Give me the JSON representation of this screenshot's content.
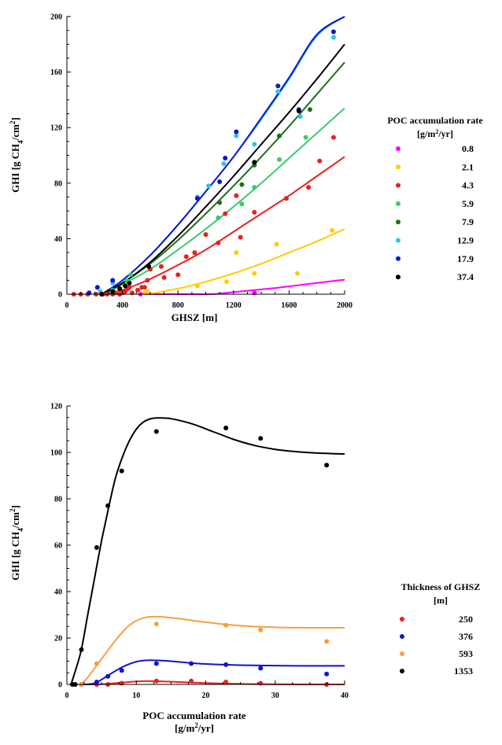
{
  "chart_data": [
    {
      "type": "scatter",
      "xlabel": "GHSZ [m]",
      "ylabel": "GHI [g CH",
      "ylabel_sub": "4",
      "ylabel_tail": "/cm",
      "ylabel_sup": "2",
      "ylabel_end": "]",
      "xlim": [
        0,
        2000
      ],
      "ylim": [
        0,
        200
      ],
      "xticks": [
        "0",
        "400",
        "800",
        "1200",
        "1600",
        "2000"
      ],
      "yticks": [
        "0",
        "40",
        "80",
        "120",
        "160",
        "200"
      ],
      "legend_title_1": "POC accumulation rate",
      "legend_title_2a": "[g/m",
      "legend_title_2sup": "2",
      "legend_title_2b": "/yr]",
      "legend_position": "right",
      "series": [
        {
          "name": "0.8",
          "color": "#ff00ff",
          "points": [
            [
              530,
              0
            ],
            [
              1350,
              1
            ]
          ],
          "curve": [
            [
              560,
              0
            ],
            [
              1000,
              0
            ],
            [
              1100,
              0.5
            ],
            [
              1300,
              2.5
            ],
            [
              1500,
              4.5
            ],
            [
              1750,
              7.5
            ],
            [
              2000,
              10.5
            ]
          ]
        },
        {
          "name": "2.1",
          "color": "#ffcc00",
          "points": [
            [
              560,
              1
            ],
            [
              580,
              2
            ],
            [
              940,
              6
            ],
            [
              1150,
              9
            ],
            [
              1220,
              30
            ],
            [
              1350,
              15
            ],
            [
              1510,
              36
            ],
            [
              1660,
              15
            ],
            [
              1910,
              46
            ]
          ],
          "curve": [
            [
              580,
              0
            ],
            [
              800,
              4
            ],
            [
              1000,
              9
            ],
            [
              1200,
              15
            ],
            [
              1400,
              22
            ],
            [
              1600,
              30
            ],
            [
              1800,
              38
            ],
            [
              2000,
              47
            ]
          ]
        },
        {
          "name": "4.3",
          "color": "#e8201c",
          "points": [
            [
              50,
              0
            ],
            [
              100,
              0
            ],
            [
              150,
              0
            ],
            [
              210,
              0
            ],
            [
              260,
              0
            ],
            [
              290,
              0
            ],
            [
              330,
              0
            ],
            [
              350,
              1
            ],
            [
              380,
              0
            ],
            [
              400,
              1
            ],
            [
              420,
              2
            ],
            [
              440,
              4
            ],
            [
              450,
              5
            ],
            [
              470,
              1
            ],
            [
              510,
              3
            ],
            [
              540,
              5
            ],
            [
              560,
              5
            ],
            [
              580,
              10
            ],
            [
              600,
              18
            ],
            [
              680,
              20
            ],
            [
              700,
              12
            ],
            [
              800,
              14
            ],
            [
              860,
              27
            ],
            [
              920,
              30
            ],
            [
              1000,
              43
            ],
            [
              1090,
              37
            ],
            [
              1140,
              58
            ],
            [
              1220,
              71
            ],
            [
              1250,
              41
            ],
            [
              1350,
              59
            ],
            [
              1580,
              69
            ],
            [
              1740,
              77
            ],
            [
              1820,
              96
            ],
            [
              1920,
              113
            ]
          ],
          "curve": [
            [
              270,
              0
            ],
            [
              400,
              3
            ],
            [
              600,
              11
            ],
            [
              800,
              21
            ],
            [
              1000,
              32
            ],
            [
              1200,
              45
            ],
            [
              1400,
              58
            ],
            [
              1600,
              71
            ],
            [
              1800,
              85
            ],
            [
              2000,
              99
            ]
          ]
        },
        {
          "name": "5.9",
          "color": "#3cc86e",
          "points": [
            [
              330,
              3
            ],
            [
              430,
              10
            ],
            [
              460,
              14
            ],
            [
              1090,
              55
            ],
            [
              1260,
              65
            ],
            [
              1350,
              77
            ],
            [
              1530,
              97
            ],
            [
              1720,
              113
            ]
          ],
          "curve": [
            [
              260,
              0
            ],
            [
              400,
              7
            ],
            [
              600,
              18
            ],
            [
              800,
              32
            ],
            [
              1000,
              47
            ],
            [
              1200,
              63
            ],
            [
              1400,
              80
            ],
            [
              1600,
              98
            ],
            [
              1800,
              116
            ],
            [
              2000,
              134
            ]
          ]
        },
        {
          "name": "7.9",
          "color": "#1e6e1e",
          "points": [
            [
              1100,
              66
            ],
            [
              1260,
              79
            ],
            [
              1350,
              93
            ],
            [
              1530,
              114
            ],
            [
              1750,
              133
            ]
          ],
          "curve": [
            [
              260,
              0
            ],
            [
              400,
              8
            ],
            [
              600,
              22
            ],
            [
              800,
              39
            ],
            [
              1000,
              58
            ],
            [
              1200,
              78
            ],
            [
              1400,
              99
            ],
            [
              1600,
              121
            ],
            [
              1800,
              144
            ],
            [
              2000,
              167
            ]
          ]
        },
        {
          "name": "12.9",
          "color": "#28c8f0",
          "points": [
            [
              240,
              2
            ],
            [
              330,
              8
            ],
            [
              940,
              70
            ],
            [
              1020,
              78
            ],
            [
              1130,
              94
            ],
            [
              1220,
              114
            ],
            [
              1350,
              108
            ],
            [
              1520,
              146
            ],
            [
              1680,
              128
            ],
            [
              1920,
              185
            ]
          ],
          "curve": [
            [
              250,
              0
            ],
            [
              400,
              10
            ],
            [
              600,
              28
            ],
            [
              800,
              50
            ],
            [
              1000,
              74
            ],
            [
              1200,
              99
            ],
            [
              1400,
              126
            ],
            [
              1600,
              155
            ],
            [
              1800,
              186
            ],
            [
              2000,
              202
            ]
          ]
        },
        {
          "name": "17.9",
          "color": "#0f14d2",
          "points": [
            [
              160,
              1
            ],
            [
              220,
              5
            ],
            [
              330,
              10
            ],
            [
              940,
              69
            ],
            [
              1100,
              81
            ],
            [
              1140,
              98
            ],
            [
              1220,
              117
            ],
            [
              1520,
              150
            ],
            [
              1670,
              133
            ],
            [
              1920,
              189
            ]
          ],
          "curve": [
            [
              250,
              0
            ],
            [
              400,
              10
            ],
            [
              600,
              28
            ],
            [
              800,
              50
            ],
            [
              1000,
              74
            ],
            [
              1200,
              99
            ],
            [
              1400,
              127
            ],
            [
              1600,
              156
            ],
            [
              1800,
              187
            ],
            [
              2000,
              203
            ]
          ]
        },
        {
          "name": "37.4",
          "color": "#000000",
          "points": [
            [
              250,
              0
            ],
            [
              330,
              2
            ],
            [
              380,
              4
            ],
            [
              420,
              6
            ],
            [
              450,
              8
            ],
            [
              590,
              20
            ],
            [
              1350,
              95
            ],
            [
              1670,
              132
            ]
          ],
          "curve": [
            [
              250,
              0
            ],
            [
              400,
              8
            ],
            [
              600,
              23
            ],
            [
              800,
              42
            ],
            [
              1000,
              63
            ],
            [
              1200,
              85
            ],
            [
              1400,
              108
            ],
            [
              1600,
              131
            ],
            [
              1800,
              155
            ],
            [
              2000,
              180
            ]
          ]
        }
      ]
    },
    {
      "type": "scatter",
      "xlabel": "POC accumulation rate",
      "xlabel_2a": "[g/m",
      "xlabel_2sup": "2",
      "xlabel_2b": "/yr]",
      "ylabel": "GHI [g CH",
      "ylabel_sub": "4",
      "ylabel_tail": "/cm",
      "ylabel_sup": "2",
      "ylabel_end": "]",
      "xlim": [
        0,
        40
      ],
      "ylim": [
        0,
        120
      ],
      "xticks": [
        "0",
        "10",
        "20",
        "30",
        "40"
      ],
      "yticks": [
        "0",
        "20",
        "40",
        "60",
        "80",
        "100",
        "120"
      ],
      "legend_title_1": "Thickness of GHSZ",
      "legend_title_2": "[m]",
      "legend_position": "right",
      "series": [
        {
          "name": "250",
          "color": "#e8201c",
          "points": [
            [
              0.8,
              0
            ],
            [
              2.1,
              0
            ],
            [
              4.3,
              0
            ],
            [
              5.9,
              0
            ],
            [
              7.9,
              0.5
            ],
            [
              12.9,
              1.5
            ],
            [
              17.9,
              1.5
            ],
            [
              22.9,
              1
            ],
            [
              27.9,
              0.5
            ],
            [
              37.4,
              0
            ]
          ],
          "curve": [
            [
              2,
              0
            ],
            [
              5,
              0.1
            ],
            [
              8,
              0.8
            ],
            [
              11,
              1.4
            ],
            [
              14,
              1.3
            ],
            [
              18,
              0.8
            ],
            [
              22,
              0.4
            ],
            [
              28,
              0.1
            ],
            [
              34,
              0
            ],
            [
              40,
              0
            ]
          ]
        },
        {
          "name": "376",
          "color": "#0f14d2",
          "points": [
            [
              2.1,
              0
            ],
            [
              4.3,
              1
            ],
            [
              5.9,
              3.5
            ],
            [
              7.9,
              6
            ],
            [
              12.9,
              9
            ],
            [
              17.9,
              9
            ],
            [
              22.9,
              8.5
            ],
            [
              27.9,
              7
            ],
            [
              37.4,
              4.5
            ]
          ],
          "curve": [
            [
              2,
              0
            ],
            [
              4,
              0.5
            ],
            [
              6,
              4
            ],
            [
              8,
              7.5
            ],
            [
              10,
              9.8
            ],
            [
              12,
              10.4
            ],
            [
              15,
              10
            ],
            [
              19,
              9
            ],
            [
              24,
              8.4
            ],
            [
              30,
              8.1
            ],
            [
              35,
              8
            ],
            [
              40,
              8
            ]
          ]
        },
        {
          "name": "593",
          "color": "#f5a040",
          "points": [
            [
              2.1,
              0
            ],
            [
              4.3,
              9
            ],
            [
              12.9,
              26
            ],
            [
              22.9,
              25.5
            ],
            [
              27.9,
              23.5
            ],
            [
              37.4,
              18.5
            ]
          ],
          "curve": [
            [
              2,
              0
            ],
            [
              3,
              3
            ],
            [
              5,
              11
            ],
            [
              7,
              19
            ],
            [
              9,
              25.5
            ],
            [
              11,
              28.6
            ],
            [
              13,
              29.2
            ],
            [
              16,
              28.4
            ],
            [
              20,
              26.8
            ],
            [
              25,
              25.3
            ],
            [
              30,
              24.6
            ],
            [
              35,
              24.4
            ],
            [
              40,
              24.4
            ]
          ]
        },
        {
          "name": "1353",
          "color": "#000000",
          "points": [
            [
              0.8,
              0
            ],
            [
              1.2,
              0
            ],
            [
              2.1,
              15
            ],
            [
              4.3,
              59
            ],
            [
              5.9,
              77
            ],
            [
              7.9,
              92
            ],
            [
              12.9,
              109
            ],
            [
              22.9,
              110.5
            ],
            [
              27.9,
              106
            ],
            [
              37.4,
              94.5
            ]
          ],
          "curve": [
            [
              0.6,
              0
            ],
            [
              2,
              14
            ],
            [
              3,
              30
            ],
            [
              4,
              46
            ],
            [
              5,
              62
            ],
            [
              6,
              76
            ],
            [
              7,
              89
            ],
            [
              8,
              98
            ],
            [
              9,
              105
            ],
            [
              10,
              110
            ],
            [
              11,
              113
            ],
            [
              12,
              114.4
            ],
            [
              13,
              114.8
            ],
            [
              15,
              114.5
            ],
            [
              18,
              112.3
            ],
            [
              21,
              109
            ],
            [
              24,
              105.6
            ],
            [
              27,
              103
            ],
            [
              30,
              101.3
            ],
            [
              33,
              100.3
            ],
            [
              36,
              99.7
            ],
            [
              40,
              99.3
            ]
          ]
        }
      ]
    }
  ]
}
